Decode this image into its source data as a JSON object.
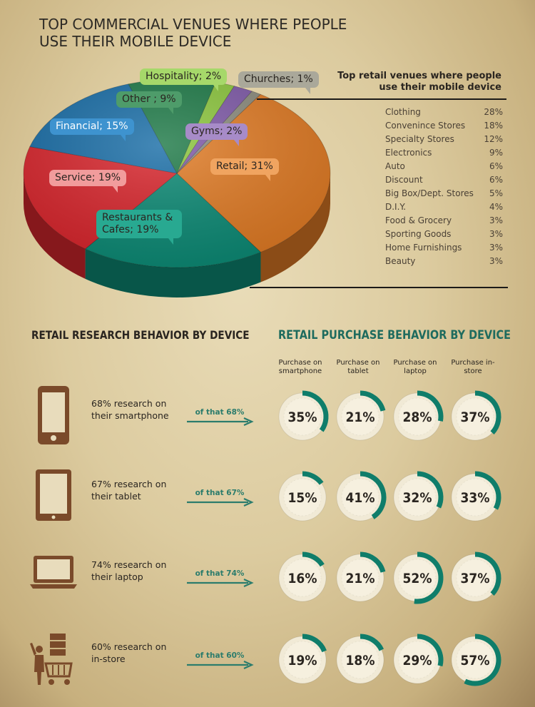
{
  "title": "TOP COMMERCIAL VENUES WHERE PEOPLE USE THEIR MOBILE DEVICE",
  "chart_data": [
    {
      "type": "pie",
      "title": "TOP COMMERCIAL VENUES WHERE PEOPLE USE THEIR MOBILE DEVICE",
      "slices": [
        {
          "label": "Retail",
          "value": 31,
          "display": "Retail; 31%",
          "color": "#e07b25"
        },
        {
          "label": "Restaurants & Cafes",
          "value": 19,
          "display": "Restaurants & Cafes; 19%",
          "color": "#0d8a75"
        },
        {
          "label": "Service",
          "value": 19,
          "display": "Service; 19%",
          "color": "#d8262d"
        },
        {
          "label": "Financial",
          "value": 15,
          "display": "Financial; 15%",
          "color": "#1a6ea7"
        },
        {
          "label": "Other",
          "value": 9,
          "display": "Other ; 9%",
          "color": "#1f7a48"
        },
        {
          "label": "Hospitality",
          "value": 2,
          "display": "Hospitality; 2%",
          "color": "#8cc63e"
        },
        {
          "label": "Gyms",
          "value": 2,
          "display": "Gyms; 2%",
          "color": "#7f5aa8"
        },
        {
          "label": "Churches",
          "value": 1,
          "display": "Churches; 1%",
          "color": "#8c8c7e"
        }
      ]
    },
    {
      "type": "table",
      "title": "Top retail venues where people use their mobile device",
      "rows": [
        {
          "label": "Clothing",
          "value": "28%"
        },
        {
          "label": "Convenince Stores",
          "value": "18%"
        },
        {
          "label": "Specialty Stores",
          "value": "12%"
        },
        {
          "label": "Electronics",
          "value": "9%"
        },
        {
          "label": "Auto",
          "value": "6%"
        },
        {
          "label": "Discount",
          "value": "6%"
        },
        {
          "label": "Big Box/Dept. Stores",
          "value": "5%"
        },
        {
          "label": "D.I.Y.",
          "value": "4%"
        },
        {
          "label": "Food & Grocery",
          "value": "3%"
        },
        {
          "label": "Sporting Goods",
          "value": "3%"
        },
        {
          "label": "Home Furnishings",
          "value": "3%"
        },
        {
          "label": "Beauty",
          "value": "3%"
        }
      ]
    },
    {
      "type": "table",
      "title": "RETAIL PURCHASE BEHAVIOR BY DEVICE",
      "columns": [
        "Purchase on smartphone",
        "Purchase on tablet",
        "Purchase on laptop",
        "Purchase in-store"
      ],
      "rows": [
        {
          "device": "smartphone",
          "research": "68% research on their smartphone",
          "of_that": "of that 68%",
          "values": [
            35,
            21,
            28,
            37
          ]
        },
        {
          "device": "tablet",
          "research": "67% research on their tablet",
          "of_that": "of that 67%",
          "values": [
            15,
            41,
            32,
            33
          ]
        },
        {
          "device": "laptop",
          "research": "74% research on their laptop",
          "of_that": "of that 74%",
          "values": [
            16,
            21,
            52,
            37
          ]
        },
        {
          "device": "in-store",
          "research": "60% research on in-store",
          "of_that": "of that 60%",
          "values": [
            19,
            18,
            29,
            57
          ]
        }
      ]
    }
  ],
  "research_title": "RETAIL RESEARCH  BEHAVIOR BY DEVICE",
  "purchase_title": "RETAIL PURCHASE BEHAVIOR BY DEVICE",
  "colors": {
    "accent": "#0f7d6a",
    "ring_track": "#f1ead6"
  }
}
